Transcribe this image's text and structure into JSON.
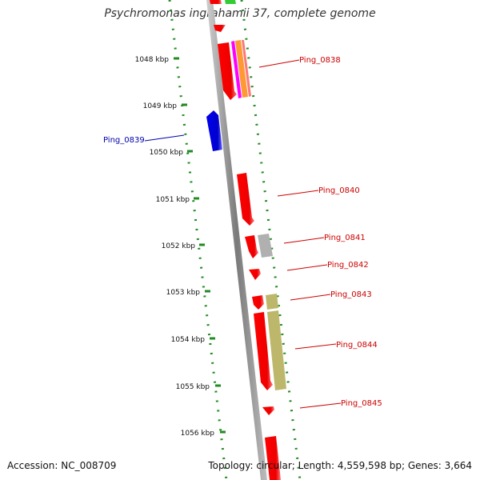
{
  "title": "Psychromonas ingrahamii 37, complete genome",
  "footer": {
    "accession": "Accession: NC_008709",
    "summary": "Topology: circular; Length: 4,559,598 bp; Genes: 3,664"
  },
  "ticks": [
    {
      "label": "1048 kbp"
    },
    {
      "label": "1049 kbp"
    },
    {
      "label": "1050 kbp"
    },
    {
      "label": "1051 kbp"
    },
    {
      "label": "1052 kbp"
    },
    {
      "label": "1053 kbp"
    },
    {
      "label": "1054 kbp"
    },
    {
      "label": "1055 kbp"
    },
    {
      "label": "1056 kbp"
    }
  ],
  "genes": [
    {
      "label": "Ping_0838",
      "strand": "-",
      "color": "#ff0000"
    },
    {
      "label": "Ping_0839",
      "strand": "+",
      "color": "#0000ff"
    },
    {
      "label": "Ping_0840",
      "strand": "-",
      "color": "#ff0000"
    },
    {
      "label": "Ping_0841",
      "strand": "-",
      "color": "#ff0000"
    },
    {
      "label": "Ping_0842",
      "strand": "-",
      "color": "#ff0000"
    },
    {
      "label": "Ping_0843",
      "strand": "-",
      "color": "#ff0000"
    },
    {
      "label": "Ping_0844",
      "strand": "-",
      "color": "#ff0000"
    },
    {
      "label": "Ping_0845",
      "strand": "-",
      "color": "#ff0000"
    }
  ],
  "colors": {
    "backbone": "#888888",
    "dots": "#228b22",
    "label_forward": "#0000aa",
    "label_reverse": "#cc0000",
    "cog_magenta": "#ff00ff",
    "cog_orange": "#ff9933",
    "cog_gray": "#b0b0b0",
    "cog_khaki": "#bdb76b",
    "cog_green": "#33cc33"
  }
}
